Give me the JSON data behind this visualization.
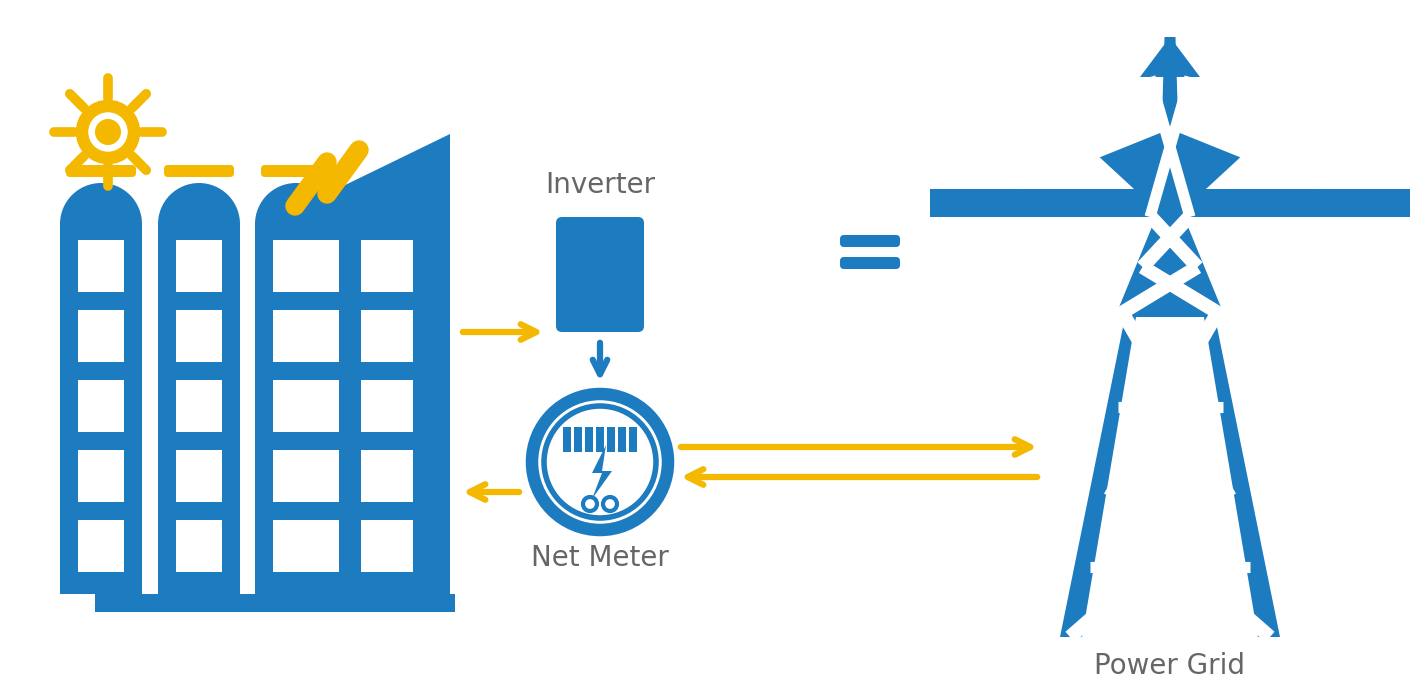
{
  "background_color": "#ffffff",
  "blue": "#1d7bbf",
  "gold": "#f5b800",
  "label_color": "#666666",
  "inverter_label": "Inverter",
  "net_meter_label": "Net Meter",
  "power_grid_label": "Power Grid",
  "label_fontsize": 20,
  "figsize": [
    14.28,
    6.97
  ],
  "dpi": 100
}
